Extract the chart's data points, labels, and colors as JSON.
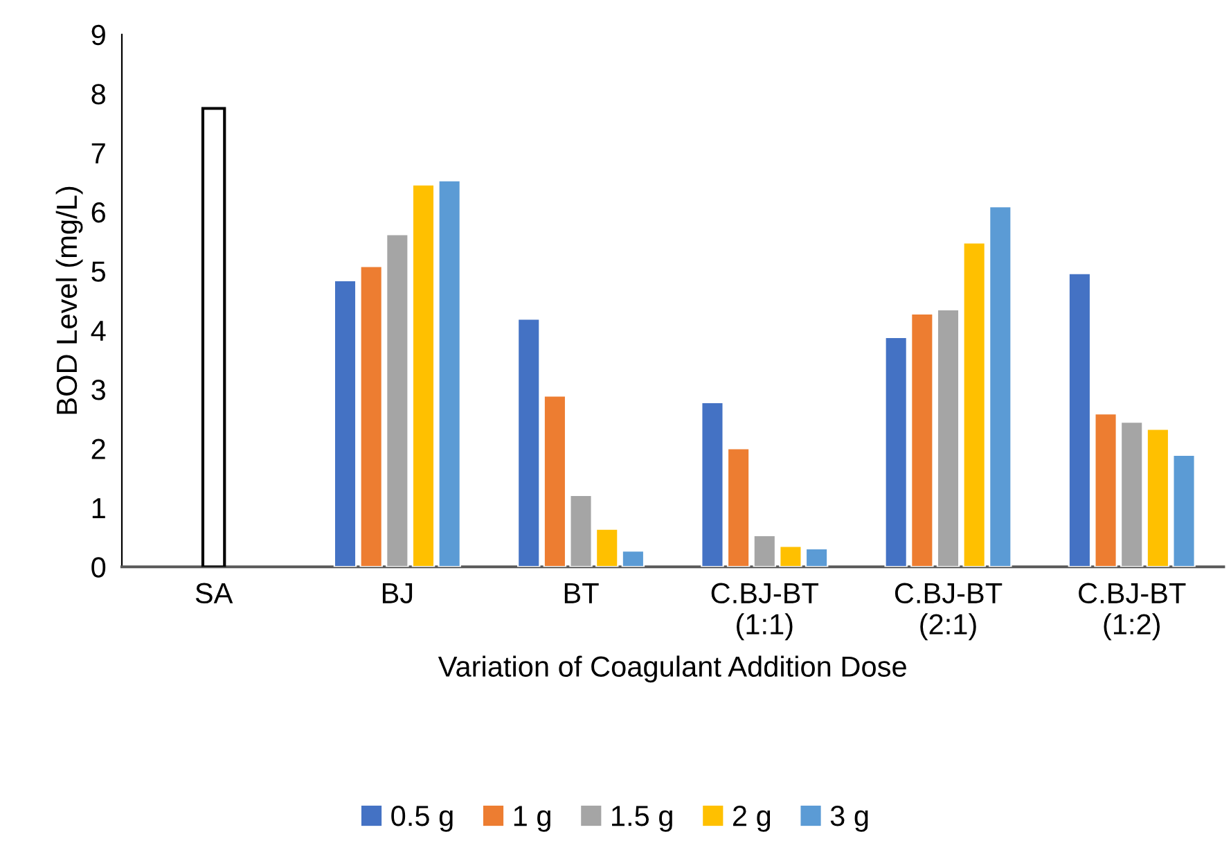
{
  "chart_data": {
    "type": "bar",
    "xlabel": "Variation of Coagulant Addition Dose",
    "ylabel": "BOD Level (mg/L)",
    "categories": [
      "SA",
      "BJ",
      "BT",
      "C.BJ-BT\n(1:1)",
      "C.BJ-BT\n(2:1)",
      "C.BJ-BT\n(1:2)"
    ],
    "series": [
      {
        "color": "#ffffff",
        "values": [
          7.75,
          null,
          null,
          null,
          null,
          null
        ]
      },
      {
        "name": "0.5 g",
        "color": "#4472c4",
        "values": [
          null,
          4.84,
          4.19,
          2.78,
          3.88,
          4.96
        ]
      },
      {
        "name": "1 g",
        "color": "#ed7d31",
        "values": [
          null,
          5.08,
          2.89,
          2.0,
          4.28,
          2.59
        ]
      },
      {
        "name": "1.5 g",
        "color": "#a5a5a5",
        "values": [
          null,
          5.62,
          1.21,
          0.53,
          4.35,
          2.45
        ]
      },
      {
        "name": "2 g",
        "color": "#ffc000",
        "values": [
          null,
          6.46,
          0.64,
          0.35,
          5.48,
          2.33
        ]
      },
      {
        "name": "3 g",
        "color": "#5b9bd5",
        "values": [
          null,
          6.53,
          0.27,
          0.31,
          6.09,
          1.89
        ]
      }
    ],
    "ylim": [
      0,
      9
    ],
    "yticks": [
      0,
      1,
      2,
      3,
      4,
      5,
      6,
      7,
      8,
      9
    ],
    "grid": false,
    "legend": "bottom"
  }
}
